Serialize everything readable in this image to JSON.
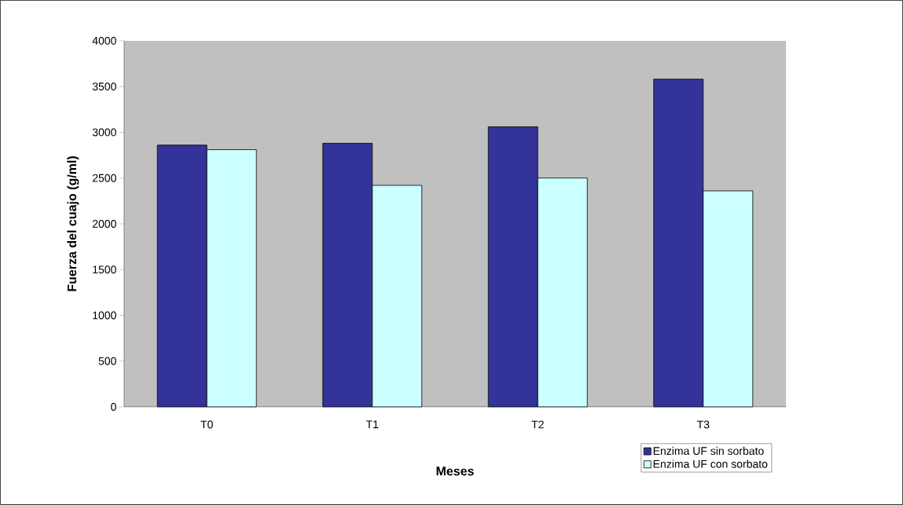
{
  "chart_data": {
    "type": "bar",
    "xlabel": "Meses",
    "ylabel": "Fuerza del cuajo (g/ml)",
    "categories": [
      "T0",
      "T1",
      "T2",
      "T3"
    ],
    "series": [
      {
        "name": "Enzima UF sin sorbato",
        "color": "#333399",
        "values": [
          2860,
          2880,
          3060,
          3580
        ]
      },
      {
        "name": "Enzima UF con sorbato",
        "color": "#ccffff",
        "values": [
          2810,
          2420,
          2500,
          2360
        ]
      }
    ],
    "ylim": [
      0,
      4000
    ],
    "yticks": [
      0,
      500,
      1000,
      1500,
      2000,
      2500,
      3000,
      3500,
      4000
    ],
    "legend": "bottom right"
  }
}
